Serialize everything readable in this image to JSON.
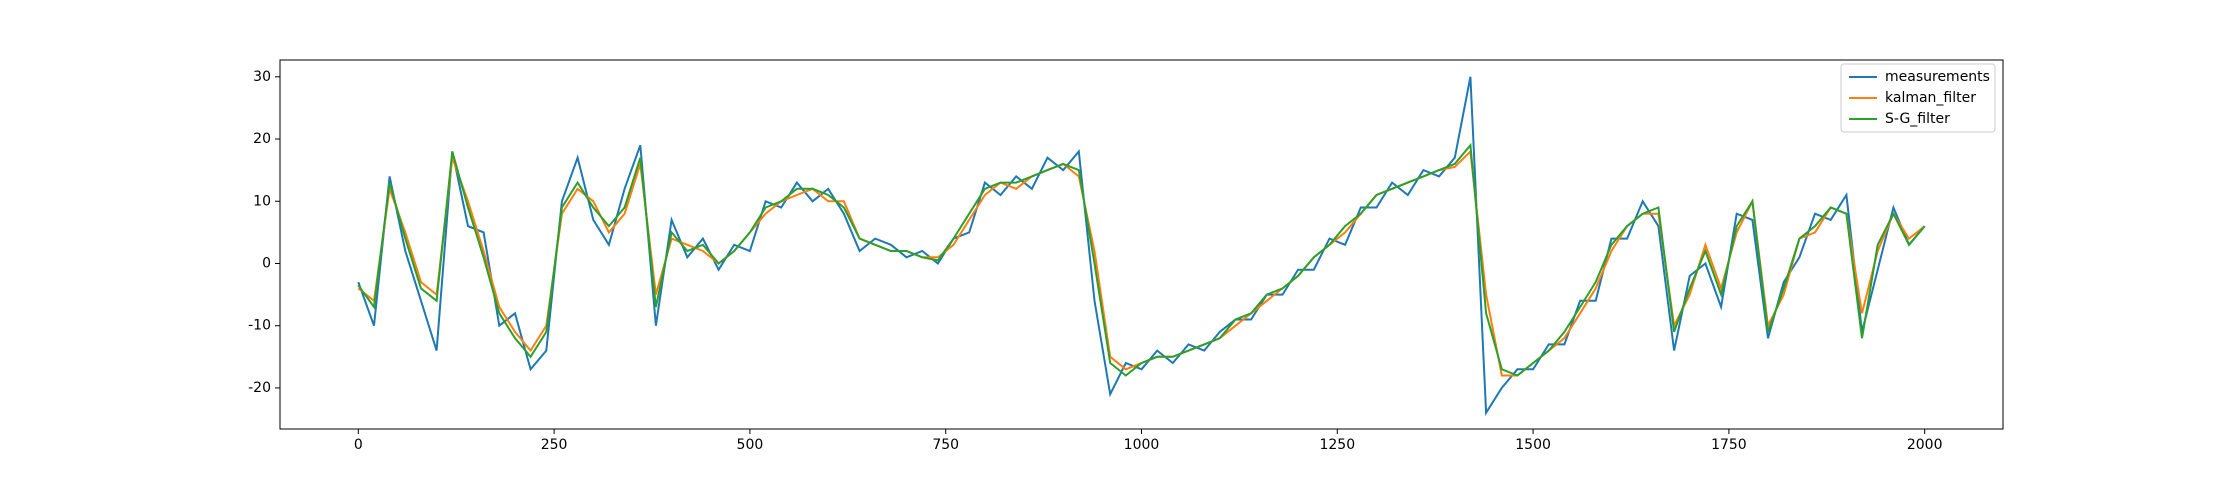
{
  "chart_data": {
    "type": "line",
    "x": [
      0,
      20,
      40,
      60,
      80,
      100,
      120,
      140,
      160,
      180,
      200,
      220,
      240,
      260,
      280,
      300,
      320,
      340,
      360,
      380,
      400,
      420,
      440,
      460,
      480,
      500,
      520,
      540,
      560,
      580,
      600,
      620,
      640,
      660,
      680,
      700,
      720,
      740,
      760,
      780,
      800,
      820,
      840,
      860,
      880,
      900,
      920,
      940,
      960,
      980,
      1000,
      1020,
      1040,
      1060,
      1080,
      1100,
      1120,
      1140,
      1160,
      1180,
      1200,
      1220,
      1240,
      1260,
      1280,
      1300,
      1320,
      1340,
      1360,
      1380,
      1400,
      1420,
      1440,
      1460,
      1480,
      1500,
      1520,
      1540,
      1560,
      1580,
      1600,
      1620,
      1640,
      1660,
      1680,
      1700,
      1720,
      1740,
      1760,
      1780,
      1800,
      1820,
      1840,
      1860,
      1880,
      1900,
      1920,
      1940,
      1960,
      1980,
      2000
    ],
    "series": [
      {
        "name": "measurements",
        "color": "#1f77b4",
        "values": [
          -3,
          -10,
          14,
          2,
          -6,
          -14,
          18,
          6,
          5,
          -10,
          -8,
          -17,
          -14,
          10,
          17,
          7,
          3,
          12,
          19,
          -10,
          7,
          1,
          4,
          -1,
          3,
          2,
          10,
          9,
          13,
          10,
          12,
          8,
          2,
          4,
          3,
          1,
          2,
          0,
          4,
          5,
          13,
          11,
          14,
          12,
          17,
          15,
          18,
          -6,
          -21,
          -16,
          -17,
          -14,
          -16,
          -13,
          -14,
          -11,
          -9,
          -9,
          -5,
          -5,
          -1,
          -1,
          4,
          3,
          9,
          9,
          13,
          11,
          15,
          14,
          17,
          30,
          -24,
          -20,
          -17,
          -17,
          -13,
          -13,
          -6,
          -6,
          4,
          4,
          10,
          6,
          -14,
          -2,
          0,
          -7,
          8,
          7,
          -12,
          -3,
          1,
          8,
          7,
          11,
          -11,
          -1,
          9,
          3,
          6
        ]
      },
      {
        "name": "kalman_filter",
        "color": "#ff7f0e",
        "values": [
          -4,
          -6,
          12,
          5,
          -3,
          -5,
          17,
          10,
          2,
          -7,
          -11,
          -14,
          -10,
          8,
          12,
          10,
          5,
          8,
          16,
          -5,
          4,
          3,
          2,
          0,
          2,
          5,
          8,
          10,
          11,
          12,
          10,
          10,
          4,
          3,
          2,
          2,
          1,
          1,
          3,
          7,
          11,
          13,
          12,
          14,
          15,
          16,
          14,
          2,
          -15,
          -17,
          -16,
          -15,
          -15,
          -14,
          -13,
          -12,
          -10,
          -8,
          -6,
          -4,
          -2,
          1,
          3,
          5,
          8,
          11,
          12,
          13,
          14,
          15,
          15.5,
          18,
          -5,
          -18,
          -18,
          -16,
          -14,
          -12,
          -8,
          -4,
          2,
          6,
          8,
          8,
          -10,
          -5,
          3,
          -4,
          5,
          10,
          -10,
          -5,
          4,
          5,
          9,
          8,
          -8,
          2,
          8,
          4,
          6
        ]
      },
      {
        "name": "S-G_filter",
        "color": "#2ca02c",
        "values": [
          -3.5,
          -7,
          13,
          4,
          -4,
          -6,
          18,
          9,
          1,
          -8,
          -12,
          -15,
          -11,
          9,
          13,
          9,
          6,
          9,
          17,
          -7,
          5,
          2,
          3,
          0,
          2,
          5,
          9,
          10,
          12,
          12,
          11,
          9,
          4,
          3,
          2,
          2,
          1,
          0.5,
          4,
          8,
          12,
          13,
          13,
          14,
          15,
          16,
          15,
          0,
          -16,
          -18,
          -16,
          -15,
          -15,
          -14,
          -13,
          -12,
          -9,
          -8,
          -5,
          -4,
          -2,
          1,
          3,
          6,
          8,
          11,
          12,
          13,
          14,
          15,
          16,
          19,
          -8,
          -17,
          -18,
          -16,
          -14,
          -11,
          -7,
          -3,
          3,
          6,
          8,
          9,
          -11,
          -4,
          2,
          -5,
          6,
          10,
          -11,
          -4,
          4,
          6,
          9,
          8,
          -12,
          3,
          8,
          3,
          6
        ]
      }
    ],
    "xlim": [
      -100,
      2100
    ],
    "ylim": [
      -26.6,
      32.7
    ],
    "xticks": [
      0,
      250,
      500,
      750,
      1000,
      1250,
      1500,
      1750,
      2000
    ],
    "yticks": [
      -20,
      -10,
      0,
      10,
      20,
      30
    ],
    "legend": "upper right"
  }
}
